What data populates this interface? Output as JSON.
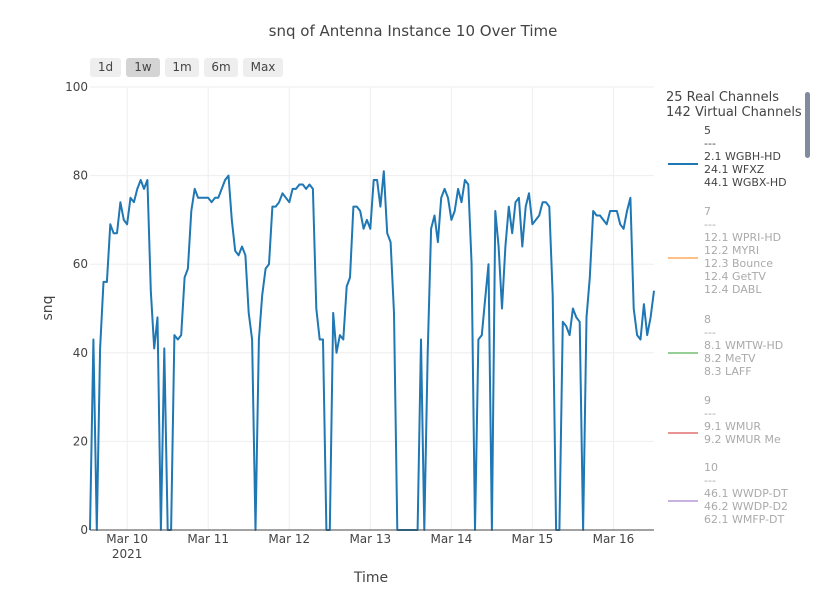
{
  "title": "snq of Antenna Instance 10 Over Time",
  "range_selector": {
    "buttons": [
      {
        "label": "1d"
      },
      {
        "label": "1w"
      },
      {
        "label": "1m"
      },
      {
        "label": "6m"
      },
      {
        "label": "Max"
      }
    ],
    "active": "1w"
  },
  "legend": {
    "header_line1": "25 Real Channels",
    "header_line2": "142 Virtual Channels",
    "entries": [
      {
        "lines": [
          "5",
          "---",
          "2.1 WGBH-HD",
          "24.1 WFXZ",
          "44.1 WGBX-HD"
        ],
        "color": "#1f77b4",
        "visible": true
      },
      {
        "lines": [
          "7",
          "---",
          "12.1 WPRI-HD",
          "12.2 MYRI",
          "12.3 Bounce",
          "12.4 GetTV",
          "12.4 DABL"
        ],
        "color": "#ff7f0e",
        "visible": false
      },
      {
        "lines": [
          "8",
          "---",
          "8.1 WMTW-HD",
          "8.2 MeTV",
          "8.3 LAFF"
        ],
        "color": "#2ca02c",
        "visible": false
      },
      {
        "lines": [
          "9",
          "---",
          "9.1 WMUR",
          "9.2 WMUR Me"
        ],
        "color": "#d62728",
        "visible": false
      },
      {
        "lines": [
          "10",
          "---",
          "46.1 WWDP-DT",
          "46.2 WWDP-D2",
          "62.1 WMFP-DT"
        ],
        "color": "#9467bd",
        "visible": false
      }
    ]
  },
  "chart_data": {
    "type": "line",
    "title": "snq of Antenna Instance 10 Over Time",
    "xlabel": "Time",
    "ylabel": "snq",
    "ylim": [
      0,
      100
    ],
    "yticks": [
      "0",
      "20",
      "40",
      "60",
      "80",
      "100"
    ],
    "xticks": [
      {
        "date": "2021-03-10",
        "label": "Mar 10",
        "sublabel": "2021"
      },
      {
        "date": "2021-03-11",
        "label": "Mar 11",
        "sublabel": ""
      },
      {
        "date": "2021-03-12",
        "label": "Mar 12",
        "sublabel": ""
      },
      {
        "date": "2021-03-13",
        "label": "Mar 13",
        "sublabel": ""
      },
      {
        "date": "2021-03-14",
        "label": "Mar 14",
        "sublabel": ""
      },
      {
        "date": "2021-03-15",
        "label": "Mar 15",
        "sublabel": ""
      },
      {
        "date": "2021-03-16",
        "label": "Mar 16",
        "sublabel": ""
      }
    ],
    "grid": true,
    "legend_position": "right",
    "series": [
      {
        "name": "5",
        "color": "#1f77b4",
        "x_start": "2021-03-09T13:00",
        "x_interval_hours": 1,
        "values": [
          0,
          43,
          0,
          41,
          56,
          56,
          69,
          67,
          67,
          74,
          70,
          69,
          75,
          74,
          77,
          79,
          77,
          79,
          54,
          41,
          48,
          0,
          41,
          0,
          0,
          44,
          43,
          44,
          57,
          59,
          72,
          77,
          75,
          75,
          75,
          75,
          74,
          75,
          75,
          77,
          79,
          80,
          70,
          63,
          62,
          64,
          62,
          49,
          43,
          0,
          43,
          53,
          59,
          60,
          73,
          73,
          74,
          76,
          75,
          74,
          77,
          77,
          78,
          78,
          77,
          78,
          77,
          50,
          43,
          43,
          0,
          0,
          49,
          40,
          44,
          43,
          55,
          57,
          73,
          73,
          72,
          68,
          70,
          68,
          79,
          79,
          73,
          81,
          67,
          65,
          49,
          0,
          0,
          0,
          0,
          0,
          0,
          0,
          43,
          0,
          40,
          68,
          71,
          65,
          75,
          77,
          75,
          70,
          72,
          77,
          74,
          79,
          78,
          60,
          0,
          43,
          44,
          52,
          60,
          0,
          72,
          64,
          50,
          64,
          73,
          67,
          74,
          75,
          64,
          73,
          76,
          69,
          70,
          71,
          74,
          74,
          73,
          53,
          0,
          0,
          47,
          46,
          44,
          50,
          48,
          47,
          0,
          48,
          57,
          72,
          71,
          71,
          70,
          69,
          72,
          72,
          72,
          69,
          68,
          72,
          75,
          50,
          44,
          43,
          51,
          44,
          48,
          54
        ]
      }
    ]
  }
}
